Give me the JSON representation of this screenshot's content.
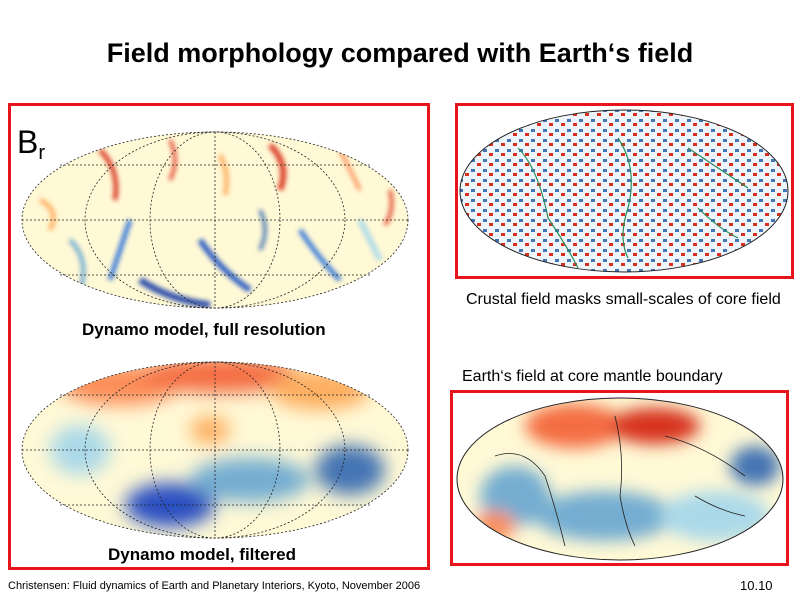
{
  "title": "Field morphology compared with Earth‘s field",
  "br_label": {
    "base": "B",
    "sub": "r"
  },
  "captions": {
    "full": "Dynamo model, full resolution",
    "filtered": "Dynamo model, filtered",
    "crust": "Crustal field masks small-scales of core field",
    "cmb": "Earth‘s field at core mantle boundary"
  },
  "footer": "Christensen: Fluid dynamics of Earth and Planetary Interiors, Kyoto, November 2006",
  "slide_number": "10.10",
  "colors": {
    "frame": "#e8141b",
    "positive": "#d7301f",
    "negative": "#1f4fc1",
    "neutral": "#ffffcc"
  }
}
